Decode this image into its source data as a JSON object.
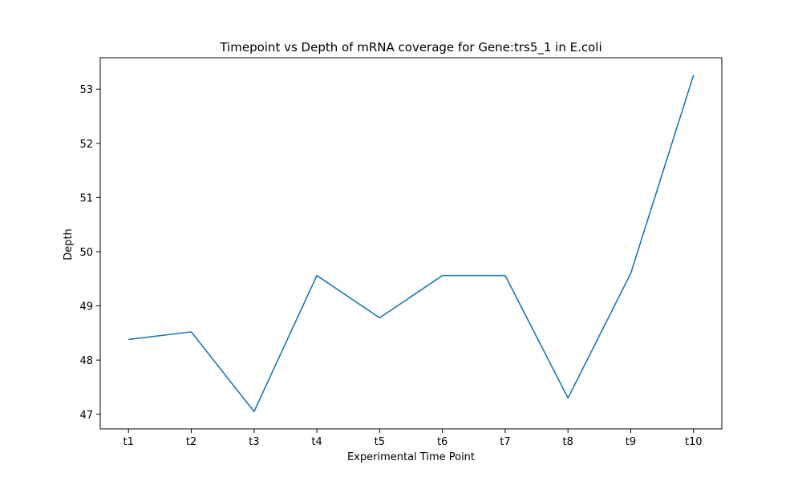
{
  "chart_data": {
    "type": "line",
    "title": "Timepoint vs Depth of mRNA coverage for Gene:trs5_1 in E.coli",
    "xlabel": "Experimental Time Point",
    "ylabel": "Depth",
    "categories": [
      "t1",
      "t2",
      "t3",
      "t4",
      "t5",
      "t6",
      "t7",
      "t8",
      "t9",
      "t10"
    ],
    "series": [
      {
        "values": [
          48.38,
          48.52,
          47.05,
          49.56,
          48.78,
          49.56,
          49.56,
          47.3,
          49.6,
          53.26
        ],
        "color": "#1f77b4"
      }
    ],
    "ylim": [
      46.73,
      53.58
    ],
    "yticks": [
      47,
      48,
      49,
      50,
      51,
      52,
      53
    ],
    "ytick_labels": [
      "47",
      "48",
      "49",
      "50",
      "51",
      "52",
      "53"
    ],
    "grid": false,
    "legend": false
  }
}
